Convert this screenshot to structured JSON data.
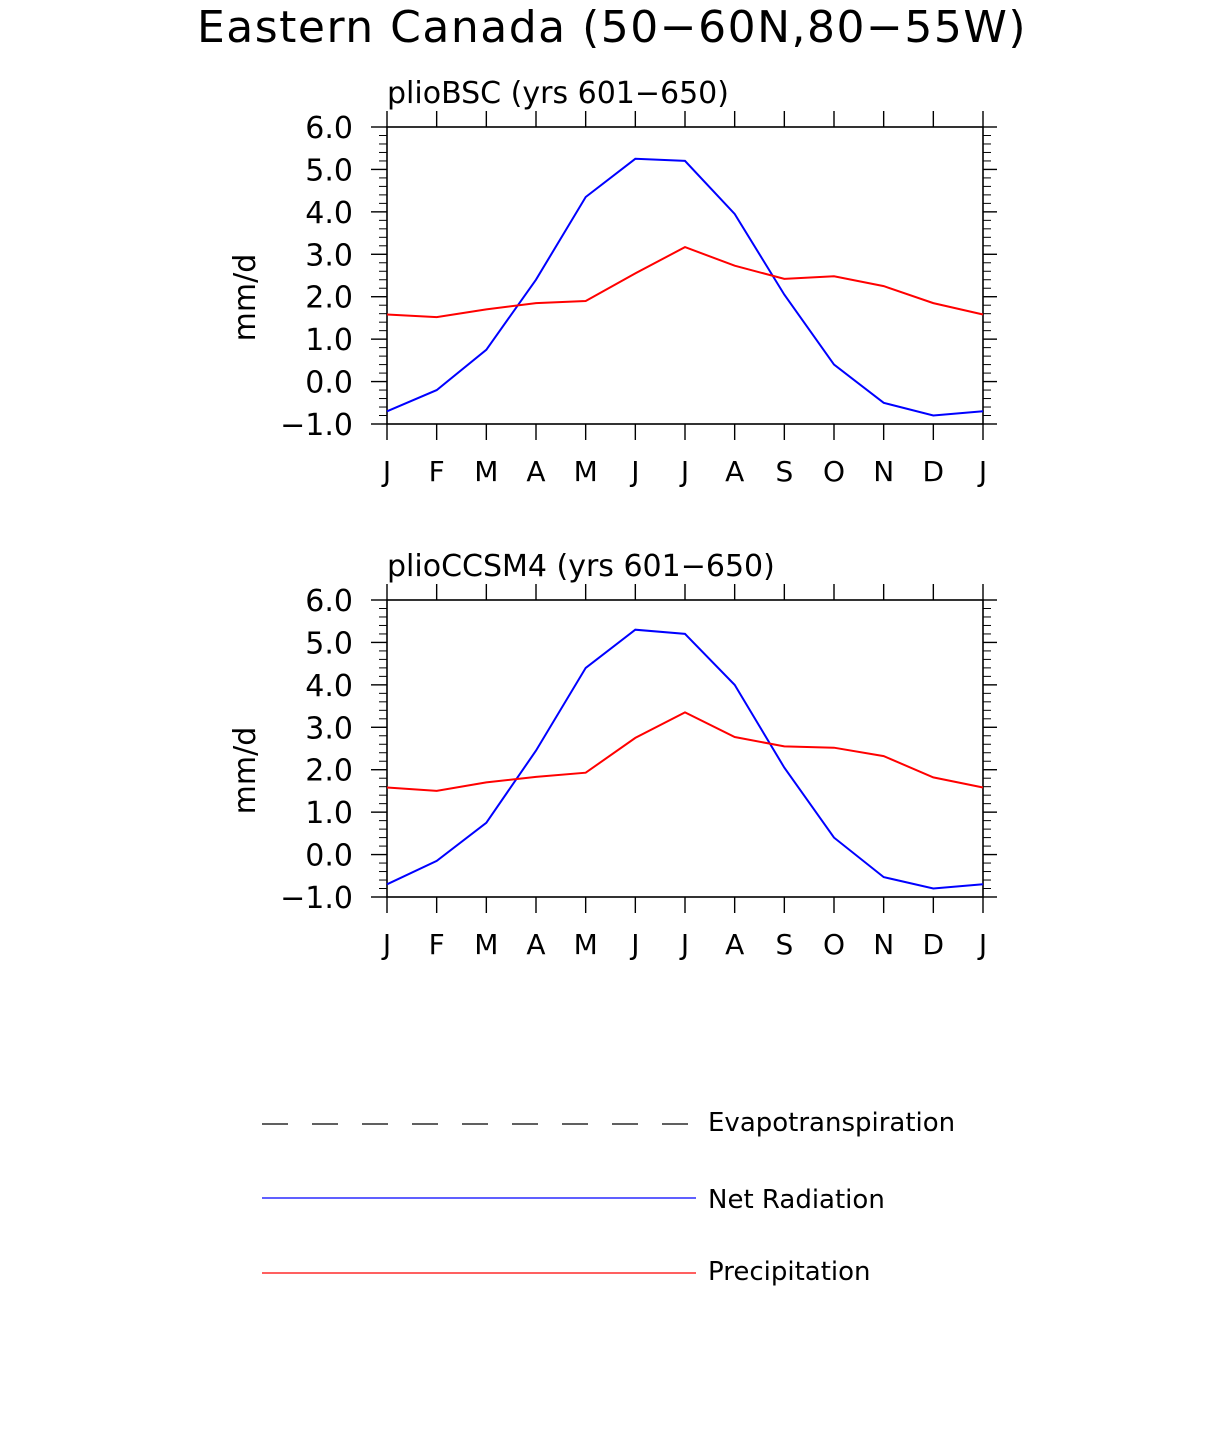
{
  "figure": {
    "title": "Eastern Canada (50−60N,80−55W)"
  },
  "legend": {
    "position": "bottom",
    "items": [
      {
        "label": "Evapotranspiration",
        "color": "#000000",
        "style": "dashed"
      },
      {
        "label": "Net Radiation",
        "color": "#0000ff",
        "style": "solid"
      },
      {
        "label": "Precipitation",
        "color": "#ff0000",
        "style": "solid"
      }
    ]
  },
  "chart_data": [
    {
      "type": "line",
      "title": "plioBSC (yrs 601−650)",
      "xlabel": "",
      "ylabel": "mm/d",
      "categories": [
        "J",
        "F",
        "M",
        "A",
        "M",
        "J",
        "J",
        "A",
        "S",
        "O",
        "N",
        "D",
        "J"
      ],
      "ylim": [
        -1.0,
        6.0
      ],
      "yticks": [
        "−1.0",
        "0.0",
        "1.0",
        "2.0",
        "3.0",
        "4.0",
        "5.0",
        "6.0"
      ],
      "series": [
        {
          "name": "Net Radiation",
          "color": "#0000ff",
          "values": [
            -0.7,
            -0.2,
            0.75,
            2.4,
            4.35,
            5.25,
            5.2,
            3.95,
            2.05,
            0.4,
            -0.5,
            -0.8,
            -0.7
          ]
        },
        {
          "name": "Precipitation",
          "color": "#ff0000",
          "values": [
            1.58,
            1.52,
            1.7,
            1.85,
            1.9,
            2.55,
            3.17,
            2.73,
            2.42,
            2.48,
            2.25,
            1.85,
            1.58
          ]
        }
      ]
    },
    {
      "type": "line",
      "title": "plioCCSM4 (yrs 601−650)",
      "xlabel": "",
      "ylabel": "mm/d",
      "categories": [
        "J",
        "F",
        "M",
        "A",
        "M",
        "J",
        "J",
        "A",
        "S",
        "O",
        "N",
        "D",
        "J"
      ],
      "ylim": [
        -1.0,
        6.0
      ],
      "yticks": [
        "−1.0",
        "0.0",
        "1.0",
        "2.0",
        "3.0",
        "4.0",
        "5.0",
        "6.0"
      ],
      "series": [
        {
          "name": "Net Radiation",
          "color": "#0000ff",
          "values": [
            -0.7,
            -0.15,
            0.75,
            2.45,
            4.4,
            5.3,
            5.2,
            4.0,
            2.05,
            0.4,
            -0.53,
            -0.8,
            -0.7
          ]
        },
        {
          "name": "Precipitation",
          "color": "#ff0000",
          "values": [
            1.58,
            1.5,
            1.7,
            1.83,
            1.93,
            2.75,
            3.35,
            2.77,
            2.55,
            2.52,
            2.32,
            1.82,
            1.58
          ]
        }
      ]
    }
  ]
}
